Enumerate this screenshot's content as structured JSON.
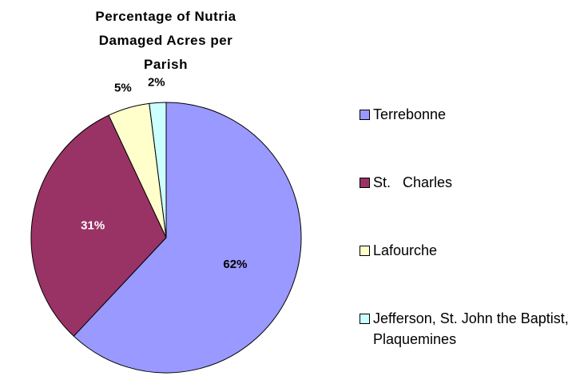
{
  "chart_data": {
    "type": "pie",
    "title": "Percentage of Nutria Damaged Acres per Parish",
    "categories": [
      "Terrebonne",
      "St.   Charles",
      "Lafourche",
      "Jefferson, St. John the Baptist, Plaquemines"
    ],
    "values": [
      62,
      31,
      5,
      2
    ],
    "value_labels": [
      "62%",
      "31%",
      "5%",
      "2%"
    ],
    "colors": [
      "#9999ff",
      "#993366",
      "#ffffcc",
      "#ccffff"
    ],
    "legend": "right"
  }
}
